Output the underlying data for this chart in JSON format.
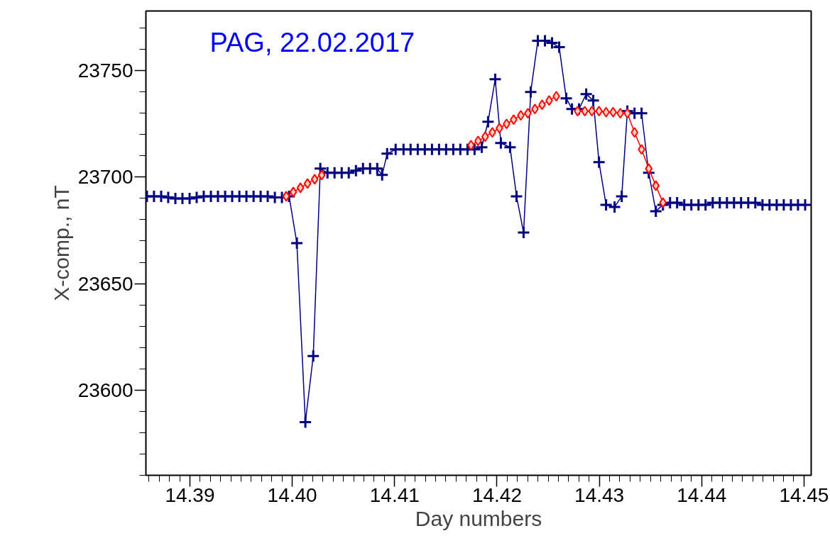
{
  "chart_data": {
    "type": "line",
    "xlabel": "Day numbers",
    "ylabel": "X-comp., nT",
    "annotations": [
      "PAG, 22.02.2017"
    ],
    "xlim": [
      14.3857,
      14.4507
    ],
    "ylim": [
      23560,
      23778
    ],
    "xticks": [
      {
        "value": 14.39,
        "label": "14.39"
      },
      {
        "value": 14.4,
        "label": "14.40"
      },
      {
        "value": 14.41,
        "label": "14.41"
      },
      {
        "value": 14.42,
        "label": "14.42"
      },
      {
        "value": 14.43,
        "label": "14.43"
      },
      {
        "value": 14.44,
        "label": "14.44"
      },
      {
        "value": 14.45,
        "label": "14.45"
      }
    ],
    "yticks": [
      {
        "value": 23600,
        "label": "23600"
      },
      {
        "value": 23650,
        "label": "23650"
      },
      {
        "value": 23700,
        "label": "23700"
      },
      {
        "value": 23750,
        "label": "23750"
      }
    ],
    "grid": false,
    "line_style": "solid",
    "series": [
      {
        "color": "#000080",
        "marker": "cross",
        "x": [
          14.3858,
          14.38649,
          14.38719,
          14.38788,
          14.38858,
          14.38927,
          14.38997,
          14.39066,
          14.39135,
          14.39205,
          14.39274,
          14.39344,
          14.39413,
          14.39483,
          14.39552,
          14.39622,
          14.39691,
          14.3976,
          14.3983,
          14.39899,
          14.39969,
          14.40045,
          14.40128,
          14.40205,
          14.40274,
          14.40344,
          14.40413,
          14.40483,
          14.40552,
          14.40622,
          14.40691,
          14.4076,
          14.4083,
          14.40878,
          14.40927,
          14.4101,
          14.41087,
          14.41156,
          14.41226,
          14.41295,
          14.41365,
          14.41434,
          14.41503,
          14.41573,
          14.41642,
          14.41712,
          14.41781,
          14.41851,
          14.41913,
          14.41983,
          14.42038,
          14.42128,
          14.42191,
          14.4226,
          14.4233,
          14.42399,
          14.42469,
          14.42538,
          14.42608,
          14.42677,
          14.42733,
          14.42802,
          14.42872,
          14.42941,
          14.42997,
          14.43066,
          14.43149,
          14.43219,
          14.43274,
          14.43344,
          14.43413,
          14.43483,
          14.43552,
          14.43622,
          14.43691,
          14.4376,
          14.4383,
          14.43899,
          14.43969,
          14.44038,
          14.44108,
          14.44177,
          14.44247,
          14.44316,
          14.44385,
          14.44455,
          14.44524,
          14.44594,
          14.44663,
          14.44733,
          14.44802,
          14.44872,
          14.44941,
          14.45011
        ],
        "values": [
          23691,
          23691,
          23691,
          23690.5,
          23690,
          23690,
          23690,
          23690.5,
          23691,
          23691,
          23691,
          23691,
          23691,
          23691,
          23691,
          23691,
          23691,
          23691,
          23690.5,
          23690.5,
          23691,
          23669,
          23585,
          23616,
          23704,
          23702,
          23702,
          23702,
          23702,
          23703,
          23704,
          23704,
          23704,
          23701,
          23711,
          23713,
          23713,
          23713,
          23713,
          23713,
          23713,
          23713,
          23713,
          23713,
          23713,
          23713,
          23713,
          23714,
          23726,
          23746,
          23716,
          23714,
          23691,
          23674,
          23740,
          23764,
          23764,
          23763,
          23761,
          23737,
          23732,
          23732,
          23739,
          23736,
          23707,
          23687,
          23686,
          23691,
          23731,
          23730,
          23730,
          23702,
          23684,
          23687,
          23688,
          23688,
          23687,
          23687,
          23687,
          23687,
          23688,
          23688,
          23688,
          23688,
          23688,
          23688,
          23688,
          23687,
          23687,
          23687,
          23687,
          23687,
          23687,
          23687
        ]
      },
      {
        "color": "#ff0000",
        "marker": "diamond",
        "x": [
          14.39941,
          14.4001,
          14.4008,
          14.40149,
          14.40219,
          14.40288,
          14.405,
          14.41746,
          14.41816,
          14.41885,
          14.41955,
          14.42024,
          14.42094,
          14.42163,
          14.42233,
          14.42302,
          14.42371,
          14.42441,
          14.4251,
          14.4258,
          14.427,
          14.42788,
          14.42858,
          14.42927,
          14.42997,
          14.43066,
          14.43135,
          14.43205,
          14.43274,
          14.43344,
          14.43413,
          14.43483,
          14.43552,
          14.43622
        ],
        "values": [
          23691,
          23693,
          23695,
          23697,
          23699,
          23701,
          null,
          23715,
          23717,
          23719,
          23721,
          23723,
          23725,
          23727,
          23729,
          23730,
          23732,
          23734,
          23736,
          23738,
          null,
          23731,
          23731,
          23731,
          23731,
          23730.5,
          23730.5,
          23730,
          23730,
          23721,
          23713,
          23704,
          23696,
          23688
        ]
      }
    ]
  }
}
